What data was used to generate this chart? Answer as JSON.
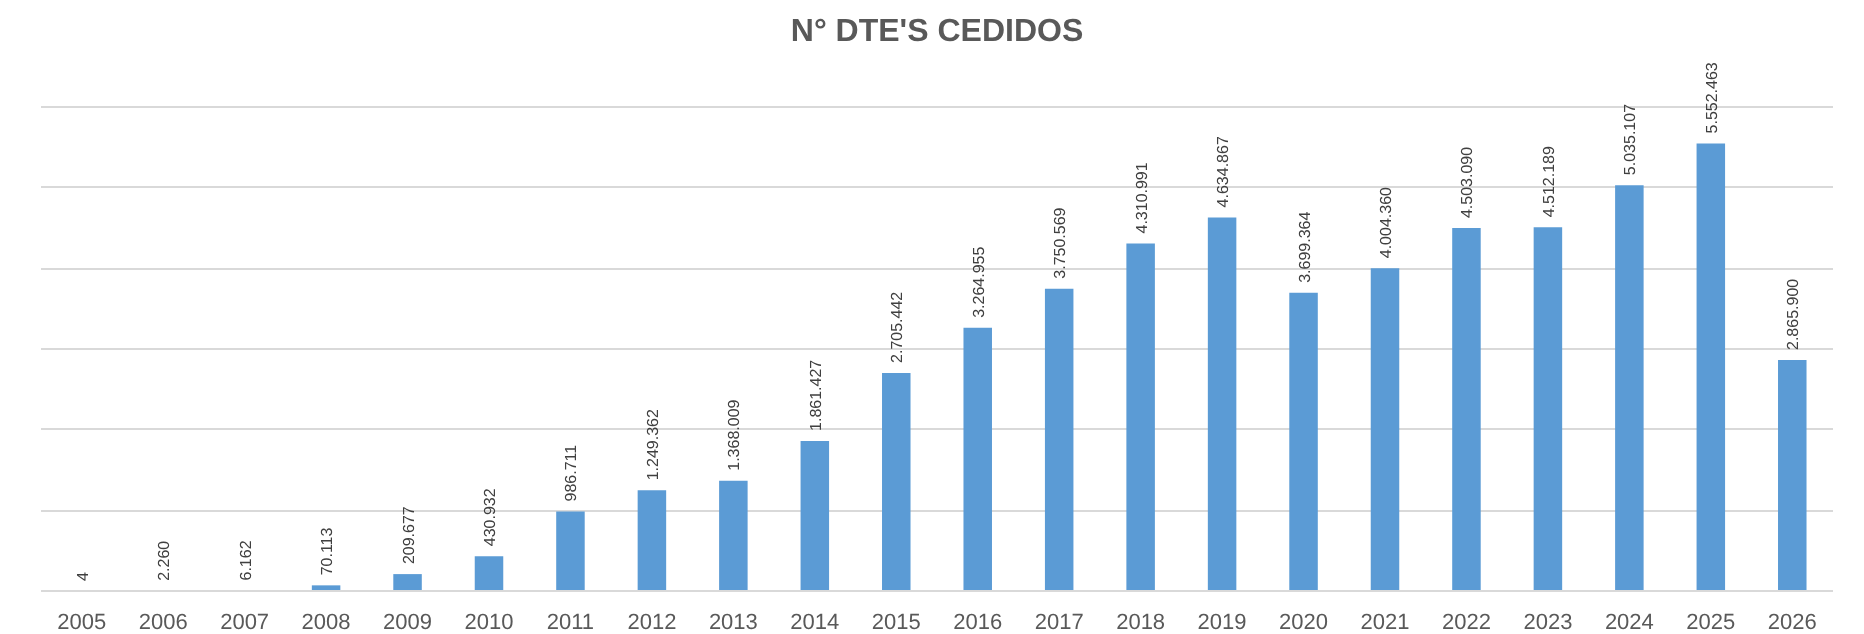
{
  "chart_data": {
    "type": "bar",
    "title": "N° DTE'S CEDIDOS",
    "categories": [
      "2005",
      "2006",
      "2007",
      "2008",
      "2009",
      "2010",
      "2011",
      "2012",
      "2013",
      "2014",
      "2015",
      "2016",
      "2017",
      "2018",
      "2019",
      "2020",
      "2021",
      "2022",
      "2023",
      "2024",
      "2025",
      "2026"
    ],
    "values": [
      4,
      2260,
      6162,
      70113,
      209677,
      430932,
      986711,
      1249362,
      1368009,
      1861427,
      2705442,
      3264955,
      3750569,
      4310991,
      4634867,
      3699364,
      4004360,
      4503090,
      4512189,
      5035107,
      5552463,
      2865900
    ],
    "value_labels": [
      "4",
      "2.260",
      "6.162",
      "70.113",
      "209.677",
      "430.932",
      "986.711",
      "1.249.362",
      "1.368.009",
      "1.861.427",
      "2.705.442",
      "3.264.955",
      "3.750.569",
      "4.310.991",
      "4.634.867",
      "3.699.364",
      "4.004.360",
      "4.503.090",
      "4.512.189",
      "5.035.107",
      "5.552.463",
      "2.865.900"
    ],
    "color": "#5b9bd5",
    "yticks": [
      {
        "value": 0,
        "label": null
      },
      {
        "value": 1000000,
        "label": null
      },
      {
        "value": 2000000,
        "label": null
      },
      {
        "value": 3000000,
        "label": null
      },
      {
        "value": 4000000,
        "label": null
      },
      {
        "value": 5000000,
        "label": null
      },
      {
        "value": 6000000,
        "label": null
      }
    ],
    "grid": "y",
    "tick_labels": "x"
  }
}
